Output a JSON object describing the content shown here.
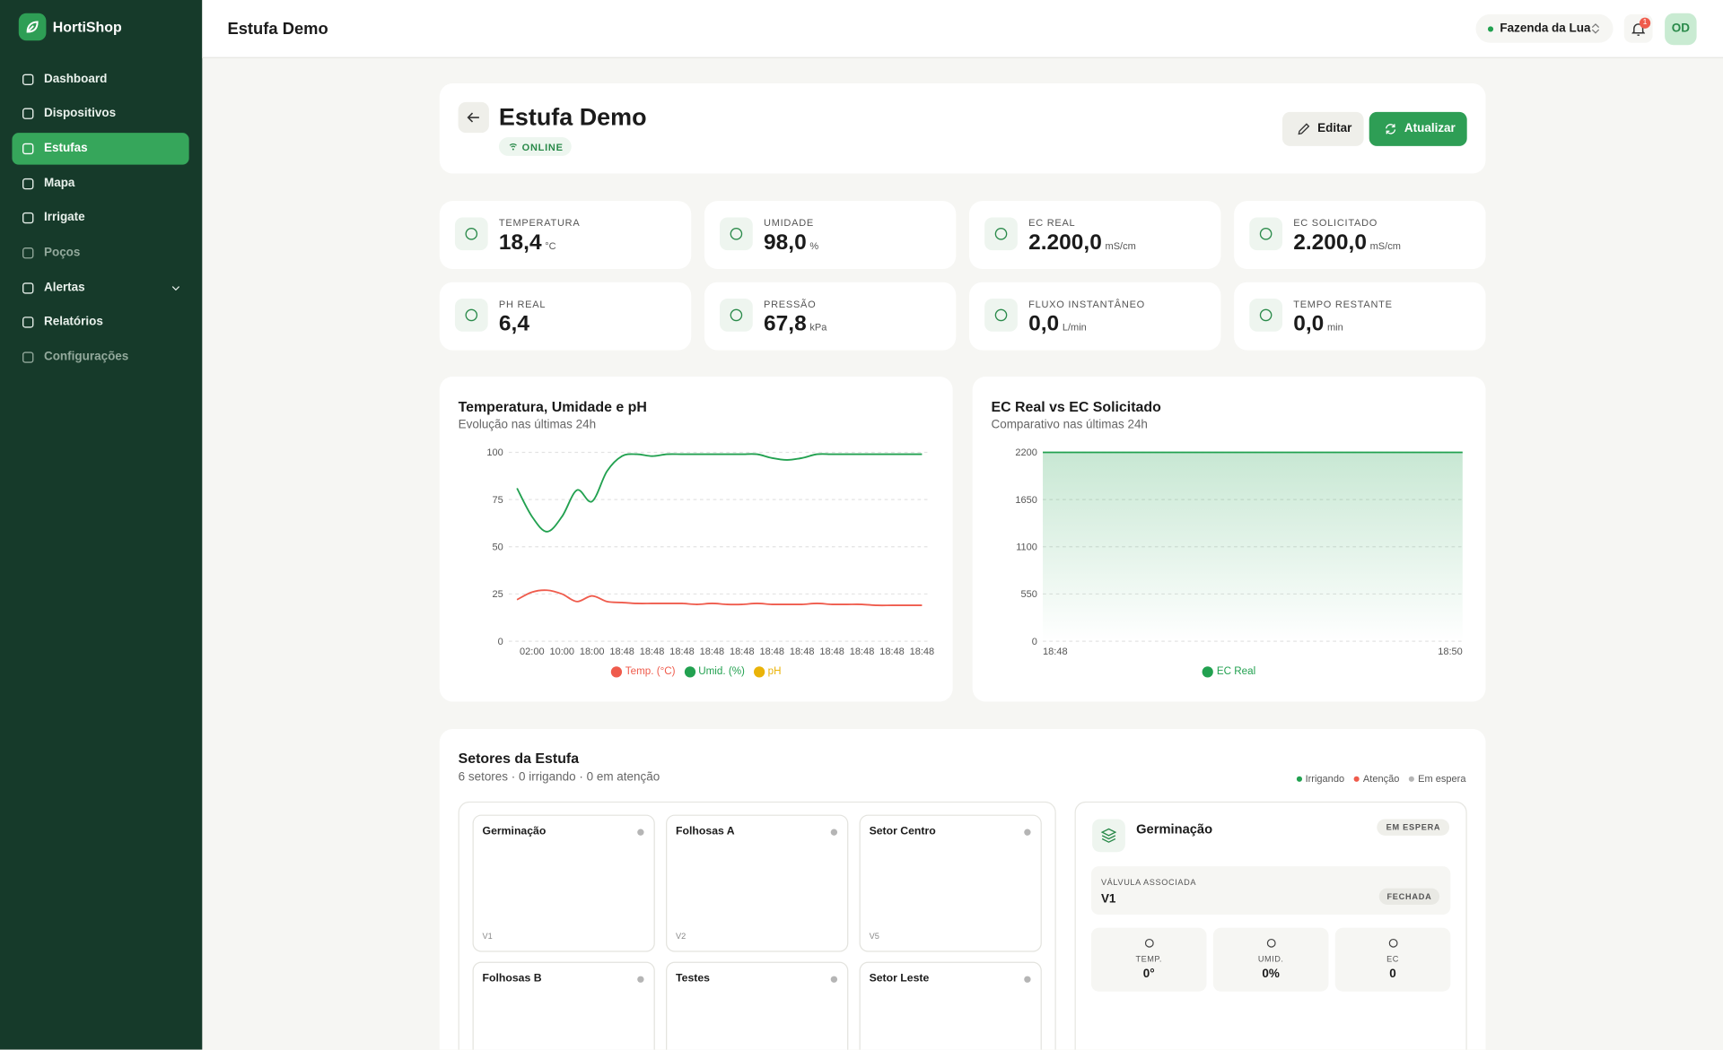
{
  "brand": "HortiShop",
  "nav": [
    "Dashboard",
    "Dispositivos",
    "Estufas",
    "Mapa",
    "Irrigate",
    "Poços",
    "Alertas",
    "Relatórios",
    "Configurações"
  ],
  "topbar": {
    "title": "Estufa Demo",
    "farm": "Fazenda da Lua",
    "notifications": "1",
    "avatar": "OD"
  },
  "header": {
    "title": "Estufa Demo",
    "status": "ONLINE",
    "edit": "Editar",
    "refresh": "Atualizar"
  },
  "metrics": [
    {
      "label": "TEMPERATURA",
      "value": "18,4",
      "unit": "°C"
    },
    {
      "label": "UMIDADE",
      "value": "98,0",
      "unit": "%"
    },
    {
      "label": "EC REAL",
      "value": "2.200,0",
      "unit": "mS/cm"
    },
    {
      "label": "EC SOLICITADO",
      "value": "2.200,0",
      "unit": "mS/cm"
    },
    {
      "label": "PH REAL",
      "value": "6,4"
    },
    {
      "label": "PRESSÃO",
      "value": "67,8",
      "unit": "kPa"
    },
    {
      "label": "FLUXO INSTANTÂNEO",
      "value": "0,0",
      "unit": "L/min"
    },
    {
      "label": "TEMPO RESTANTE",
      "value": "0,0",
      "unit": "min"
    }
  ],
  "charts": [
    {
      "type": "line",
      "title": "Temperatura, Umidade e pH",
      "subtitle": "Evolução nas últimas 24h",
      "categories": [
        null,
        "02:00",
        null,
        "10:00",
        null,
        "18:00",
        null,
        "18:48",
        null,
        "18:48",
        null,
        "18:48",
        null,
        "18:48",
        null,
        "18:48",
        null,
        "18:48",
        null,
        "18:48",
        null,
        "18:48",
        null,
        "18:48",
        null,
        "18:48",
        null,
        "18:48"
      ],
      "series": [
        {
          "name": "Temp. (°C)",
          "color": "#ef5b4c",
          "values": [
            22,
            26,
            27,
            25,
            21,
            24,
            21,
            20.5,
            20,
            20,
            20,
            20,
            19.5,
            20,
            19.5,
            19.5,
            20,
            19.5,
            19.5,
            19.5,
            20,
            19.5,
            19.5,
            19.5,
            19,
            19,
            19,
            19
          ]
        },
        {
          "name": "Umid. (%)",
          "color": "#22a150",
          "values": [
            81,
            66,
            58,
            66,
            80,
            74,
            90,
            98,
            99,
            98,
            99,
            99,
            99,
            99,
            99,
            99,
            99,
            97,
            96,
            97,
            99,
            99,
            99,
            99,
            99,
            99,
            99,
            99
          ]
        },
        {
          "name": "pH",
          "color": "#eab308",
          "values": [
            null,
            null,
            null,
            null,
            null,
            null,
            null,
            null,
            null,
            null,
            null,
            null,
            null,
            null,
            null,
            null,
            null,
            null,
            null,
            null,
            null,
            null,
            null,
            null,
            null,
            null,
            null,
            null
          ]
        }
      ],
      "ylim": [
        0,
        100
      ],
      "yticks": [
        0,
        25,
        50,
        75,
        100
      ],
      "grid": true
    },
    {
      "type": "area",
      "title": "EC Real vs EC Solicitado",
      "subtitle": "Comparativo nas últimas 24h",
      "categories": [
        "18:48",
        "18:50"
      ],
      "series": [
        {
          "name": "EC Real",
          "color": "#22a150",
          "values": [
            2200,
            2200
          ]
        }
      ],
      "ylim": [
        0,
        2200
      ],
      "yticks": [
        0,
        550,
        1100,
        1650,
        2200
      ],
      "grid": true
    }
  ],
  "sectors": {
    "title": "Setores da Estufa",
    "summary": "6 setores · 0 irrigando · 0 em atenção",
    "legend": [
      {
        "name": "Irrigando",
        "color": "#22a150"
      },
      {
        "name": "Atenção",
        "color": "#ef5b4c"
      },
      {
        "name": "Em espera",
        "color": "#b5b5b5"
      }
    ],
    "cards": [
      {
        "name": "Germinação",
        "valve": "V1"
      },
      {
        "name": "Folhosas A",
        "valve": "V2"
      },
      {
        "name": "Setor Centro",
        "valve": "V5"
      },
      {
        "name": "Folhosas B"
      },
      {
        "name": "Testes"
      },
      {
        "name": "Setor Leste"
      }
    ],
    "detail": {
      "name": "Germinação",
      "status": "EM ESPERA",
      "valve_label": "VÁLVULA ASSOCIADA",
      "valve": "V1",
      "valve_state": "FECHADA",
      "stats": [
        {
          "label": "TEMP.",
          "value": "0°"
        },
        {
          "label": "UMID.",
          "value": "0%"
        },
        {
          "label": "EC",
          "value": "0"
        }
      ]
    }
  }
}
